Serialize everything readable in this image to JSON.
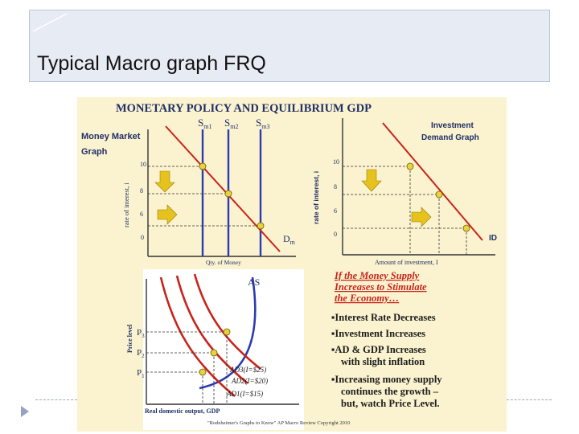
{
  "slide": {
    "title": "Typical Macro graph FRQ",
    "accent_color": "#e7ebf4",
    "bullet_icon": "triangle-bullet-icon"
  },
  "figure": {
    "main_title": "MONETARY POLICY AND EQUILIBRIUM GDP",
    "money_market": {
      "label_line1": "Money Market",
      "label_line2": "Graph",
      "y_axis_label": "rate of interest, i",
      "x_axis_label": "Qty. of Money",
      "y_ticks": [
        "10",
        "8",
        "6",
        "0"
      ],
      "supply_labels": [
        "S",
        "S",
        "S"
      ],
      "supply_subscripts": [
        "m1",
        "m2",
        "m3"
      ],
      "demand_label": "D",
      "demand_subscript": "m"
    },
    "investment": {
      "label_line1": "Investment",
      "label_line2": "Demand Graph",
      "y_axis_label": "rate of interest, i",
      "x_axis_label": "Amount of investment, I",
      "y_ticks": [
        "10",
        "8",
        "6",
        "0"
      ],
      "curve_label": "ID"
    },
    "ad_as": {
      "as_label": "AS",
      "y_axis_label": "Price level",
      "x_axis_label": "Real domestic output, GDP",
      "price_labels": [
        "P",
        "P",
        "P"
      ],
      "price_subscripts": [
        "3",
        "2",
        "1"
      ],
      "ad_labels": [
        "AD3(I=$25)",
        "AD2(I=$20)",
        "AD1(I=$15)"
      ]
    },
    "explanation": {
      "heading_lines": [
        "If the Money Supply",
        "Increases to Stimulate",
        "the Economy…"
      ],
      "bullets": [
        "▪Interest Rate Decreases",
        "▪Investment Increases",
        "▪AD & GDP Increases",
        "with slight inflation",
        "▪Increasing money supply",
        "continues the growth –",
        "but, watch Price Level."
      ]
    },
    "credit": "\"Rodeheimer's Graphs to Know\" AP Macro Review Copyright 2010",
    "colors": {
      "background": "#fbf3cf",
      "supply_lines": "#2b3bb0",
      "demand_curve": "#c8231c",
      "points": "#e8d43a",
      "arrows": "#e6c21d",
      "as_curve": "#2b3bb0"
    }
  }
}
